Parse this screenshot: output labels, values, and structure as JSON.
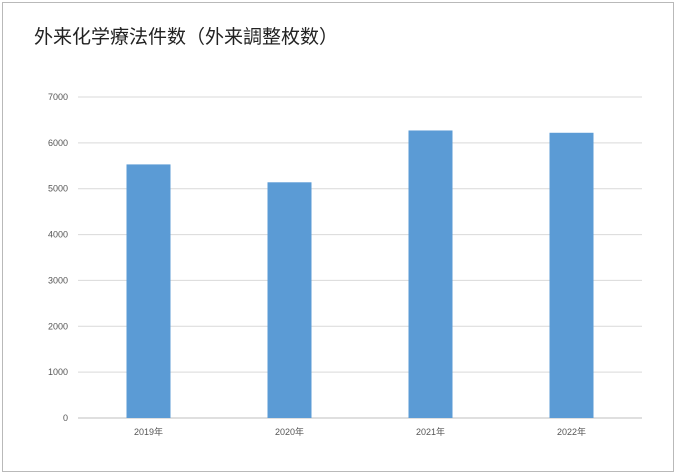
{
  "chart_data": {
    "type": "bar",
    "title": "外来化学療法件数（外来調整枚数）",
    "categories": [
      "2019年",
      "2020年",
      "2021年",
      "2022年"
    ],
    "values": [
      5530,
      5140,
      6270,
      6220
    ],
    "xlabel": "",
    "ylabel": "",
    "ylim": [
      0,
      7000
    ],
    "yticks": [
      0,
      1000,
      2000,
      3000,
      4000,
      5000,
      6000,
      7000
    ],
    "grid": true,
    "legend": "none",
    "bar_color": "#5b9bd5",
    "grid_color": "#d9d9d9"
  }
}
